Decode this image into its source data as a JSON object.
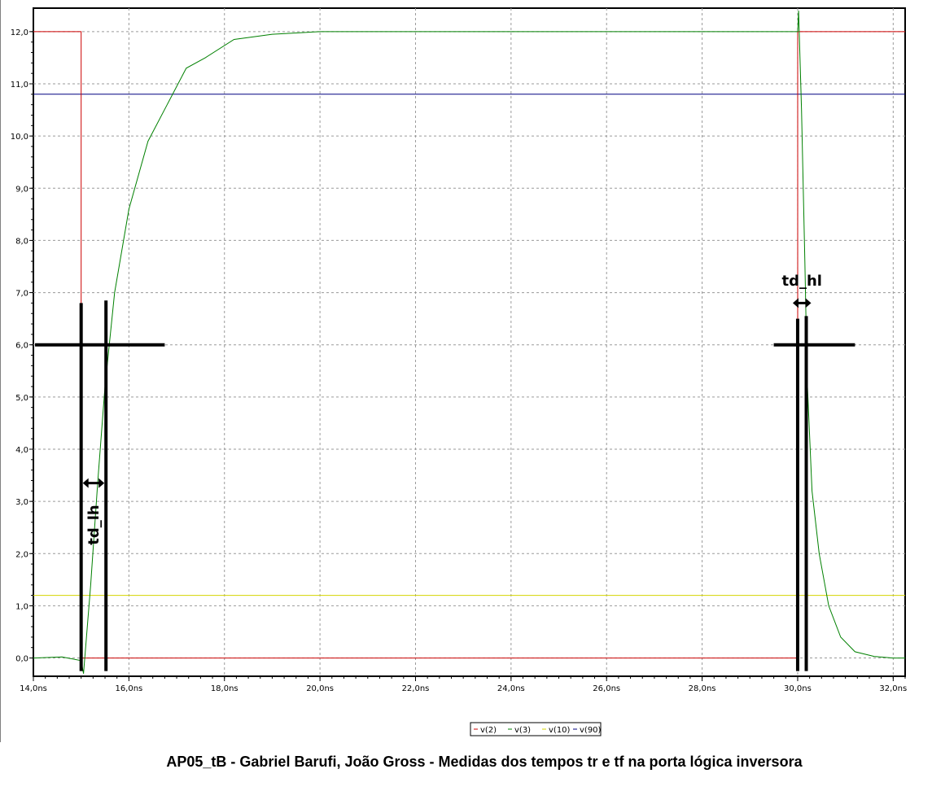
{
  "caption": "AP05_tB - Gabriel Barufi, João Gross - Medidas dos tempos tr e tf na porta lógica inversora",
  "chart_data": {
    "type": "line",
    "xlabel": "",
    "ylabel": "",
    "xlim": [
      14.0,
      32.25
    ],
    "ylim": [
      -0.35,
      12.45
    ],
    "x_ticks": [
      14,
      16,
      18,
      20,
      22,
      24,
      26,
      28,
      30,
      32
    ],
    "x_tick_labels": [
      "14,0ns",
      "16,0ns",
      "18,0ns",
      "20,0ns",
      "22,0ns",
      "24,0ns",
      "26,0ns",
      "28,0ns",
      "30,0ns",
      "32,0ns"
    ],
    "y_ticks": [
      0,
      1,
      2,
      3,
      4,
      5,
      6,
      7,
      8,
      9,
      10,
      11,
      12
    ],
    "y_tick_labels": [
      "0,0",
      "1,0",
      "2,0",
      "3,0",
      "4,0",
      "5,0",
      "6,0",
      "7,0",
      "8,0",
      "9,0",
      "10,0",
      "11,0",
      "12,0"
    ],
    "grid": true,
    "legend_position": "bottom-center",
    "legend_label": "v(2) v(3) v(10) v(90)",
    "series": [
      {
        "name": "v(2)",
        "color": "#cc0000",
        "x": [
          14.0,
          15.0,
          15.0,
          30.0,
          30.0,
          32.25
        ],
        "y": [
          12,
          12,
          0,
          0,
          12,
          12
        ]
      },
      {
        "name": "v(3)",
        "color": "#008000",
        "x": [
          14.0,
          14.6,
          15.0,
          15.05,
          15.2,
          15.35,
          15.5,
          15.7,
          16.0,
          16.4,
          16.8,
          17.2,
          17.6,
          18.2,
          19.0,
          20.0,
          22.0,
          25.0,
          28.0,
          30.0,
          30.02,
          30.08,
          30.15,
          30.2,
          30.3,
          30.45,
          30.65,
          30.9,
          31.2,
          31.6,
          32.0,
          32.25
        ],
        "y": [
          0,
          0.02,
          -0.05,
          -0.3,
          1.4,
          3.4,
          5.2,
          7.0,
          8.6,
          9.9,
          10.6,
          11.3,
          11.5,
          11.85,
          11.95,
          12,
          12,
          12,
          12,
          12,
          12.4,
          10.5,
          7.6,
          5.3,
          3.2,
          2.0,
          1.0,
          0.4,
          0.12,
          0.03,
          0.0,
          0.0
        ]
      },
      {
        "name": "v(10)",
        "color": "#d4d400",
        "x": [
          14.0,
          32.25
        ],
        "y": [
          1.2,
          1.2
        ]
      },
      {
        "name": "v(90)",
        "color": "#000080",
        "x": [
          14.0,
          32.25
        ],
        "y": [
          10.8,
          10.8
        ]
      }
    ],
    "annotations": [
      {
        "label": "td_lh",
        "x1": 15.0,
        "x2": 15.52,
        "level": 6.0
      },
      {
        "label": "td_hl",
        "x1": 30.0,
        "x2": 30.18,
        "level": 6.0
      }
    ]
  }
}
